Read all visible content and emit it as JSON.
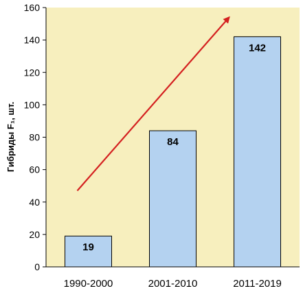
{
  "chart_data": {
    "type": "bar",
    "categories": [
      "1990-2000",
      "2001-2010",
      "2011-2019"
    ],
    "values": [
      19,
      84,
      142
    ],
    "data_labels": [
      "19",
      "84",
      "142"
    ],
    "ylabel": "Гибриды F₁, шт.",
    "ylim": [
      0,
      160
    ],
    "yticks": [
      "0",
      "20",
      "40",
      "60",
      "80",
      "100",
      "120",
      "140",
      "160"
    ],
    "grid": false,
    "annotation": "trend-arrow",
    "trend_arrow": {
      "from": {
        "category_index": 0,
        "y": 47
      },
      "to": {
        "category_index": 2,
        "y": 154
      }
    },
    "colors": {
      "plot_background": "#f7efbe",
      "bar_fill": "#b4d2f0",
      "bar_stroke": "#000000",
      "arrow": "#d42020"
    }
  }
}
